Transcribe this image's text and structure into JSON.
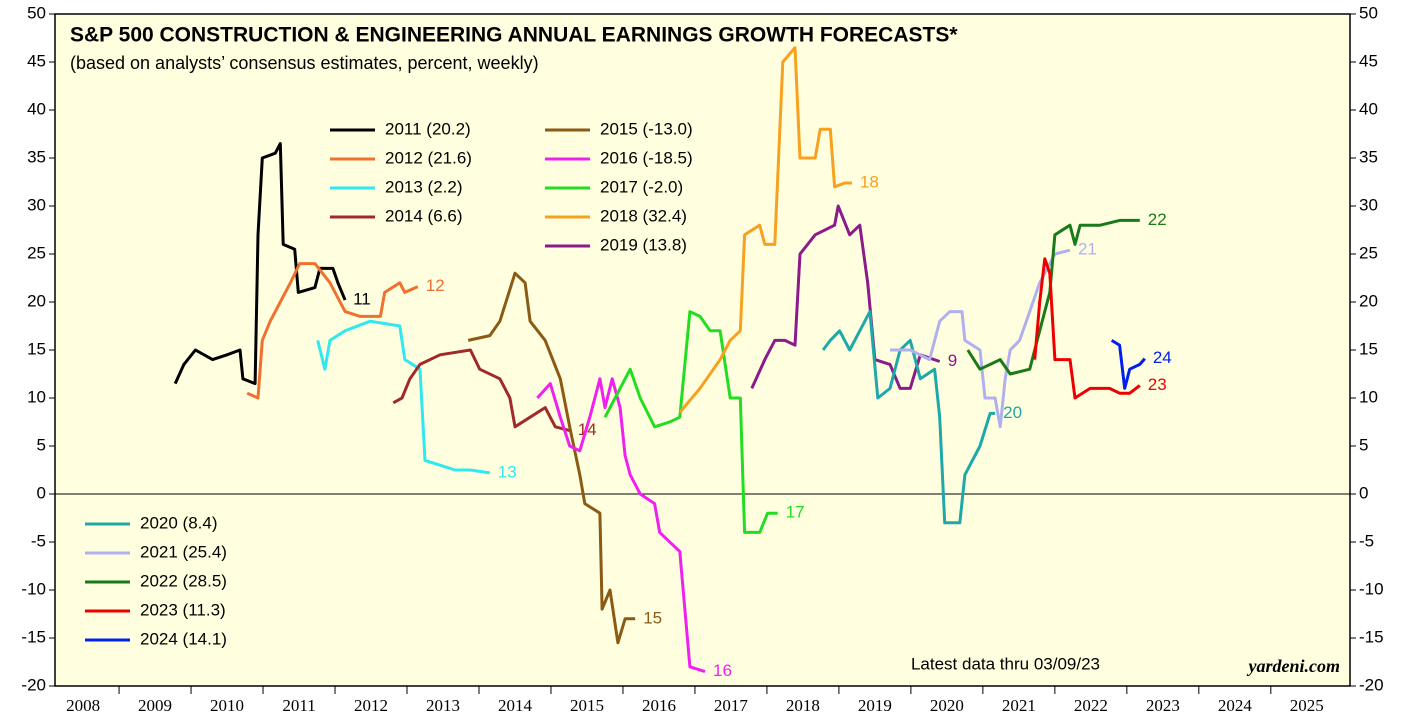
{
  "chart_data": {
    "type": "line",
    "title": "S&P 500 CONSTRUCTION & ENGINEERING ANNUAL EARNINGS GROWTH FORECASTS*",
    "subtitle": "(based on analysts’ consensus estimates, percent, weekly)",
    "annotations": [
      "Latest data thru 03/09/23",
      "yardeni.com"
    ],
    "xlim": [
      2008.11,
      2026.1
    ],
    "xticks": [
      2008,
      2009,
      2010,
      2011,
      2012,
      2013,
      2014,
      2015,
      2016,
      2017,
      2018,
      2019,
      2020,
      2021,
      2022,
      2023,
      2024,
      2025
    ],
    "ylim": [
      -20,
      50
    ],
    "yticks": [
      -20,
      -15,
      -10,
      -5,
      0,
      5,
      10,
      15,
      20,
      25,
      30,
      35,
      40,
      45,
      50
    ],
    "series": [
      {
        "name": "2011 (20.2)",
        "end_label": "11",
        "color": "#000000",
        "x": [
          2009.78,
          2009.9,
          2010.06,
          2010.3,
          2010.5,
          2010.68,
          2010.72,
          2010.89,
          2010.93,
          2010.99,
          2011.17,
          2011.24,
          2011.28,
          2011.44,
          2011.49,
          2011.72,
          2011.79,
          2011.97,
          2012.04,
          2012.14
        ],
        "values": [
          11.5,
          13.5,
          15,
          14,
          14.5,
          15,
          12,
          11.5,
          27,
          35,
          35.5,
          36.5,
          26,
          25.5,
          21,
          21.5,
          23.5,
          23.5,
          22,
          20.2
        ]
      },
      {
        "name": "2012 (21.6)",
        "end_label": "12",
        "color": "#f07030",
        "x": [
          2010.78,
          2010.93,
          2010.99,
          2011.1,
          2011.24,
          2011.38,
          2011.51,
          2011.72,
          2011.93,
          2012.14,
          2012.35,
          2012.63,
          2012.69,
          2012.9,
          2012.97,
          2013.15
        ],
        "values": [
          10.5,
          10,
          16,
          18,
          20,
          22,
          24,
          24,
          22,
          19,
          18.5,
          18.5,
          21,
          22,
          21,
          21.6
        ]
      },
      {
        "name": "2013 (2.2)",
        "end_label": "13",
        "color": "#30e8f0",
        "x": [
          2011.76,
          2011.86,
          2011.93,
          2012.14,
          2012.49,
          2012.9,
          2012.97,
          2013.18,
          2013.25,
          2013.46,
          2013.67,
          2013.88,
          2014.15
        ],
        "values": [
          16,
          13,
          16,
          17,
          18,
          17.5,
          14,
          13,
          3.5,
          3,
          2.5,
          2.5,
          2.2
        ]
      },
      {
        "name": "2014 (6.6)",
        "end_label": "14",
        "color": "#a02a2a",
        "x": [
          2012.81,
          2012.93,
          2013.04,
          2013.18,
          2013.46,
          2013.88,
          2014.01,
          2014.29,
          2014.43,
          2014.5,
          2014.71,
          2014.92,
          2015.06,
          2015.26
        ],
        "values": [
          9.5,
          10,
          12,
          13.5,
          14.5,
          15,
          13,
          12,
          10,
          7,
          8,
          9,
          7,
          6.6
        ]
      },
      {
        "name": "2015 (-13.0)",
        "end_label": "15",
        "color": "#8b5a14",
        "x": [
          2013.85,
          2014.15,
          2014.29,
          2014.5,
          2014.64,
          2014.71,
          2014.92,
          2015.13,
          2015.26,
          2015.4,
          2015.47,
          2015.68,
          2015.71,
          2015.82,
          2015.93,
          2016.03,
          2016.17
        ],
        "values": [
          16,
          16.5,
          18,
          23,
          22,
          18,
          16,
          12,
          7,
          2,
          -1,
          -2,
          -12,
          -10,
          -15.5,
          -13,
          -13
        ]
      },
      {
        "name": "2016 (-18.5)",
        "end_label": "16",
        "color": "#f020f0",
        "x": [
          2014.81,
          2014.99,
          2015.13,
          2015.26,
          2015.4,
          2015.54,
          2015.68,
          2015.75,
          2015.85,
          2015.96,
          2016.03,
          2016.1,
          2016.24,
          2016.44,
          2016.51,
          2016.79,
          2016.93,
          2017.14
        ],
        "values": [
          10,
          11.5,
          8,
          5,
          4.5,
          8,
          12,
          9,
          12,
          9,
          4,
          2,
          0,
          -1,
          -4,
          -6,
          -18,
          -18.5
        ]
      },
      {
        "name": "2017 (-2.0)",
        "end_label": "17",
        "color": "#22dd22",
        "x": [
          2015.75,
          2015.96,
          2016.1,
          2016.24,
          2016.44,
          2016.65,
          2016.79,
          2016.93,
          2017.07,
          2017.21,
          2017.35,
          2017.49,
          2017.63,
          2017.69,
          2017.9,
          2018.01,
          2018.15
        ],
        "values": [
          8,
          11,
          13,
          10,
          7,
          7.5,
          8,
          19,
          18.5,
          17,
          17,
          10,
          10,
          -4,
          -4,
          -2,
          -2
        ]
      },
      {
        "name": "2018 (32.4)",
        "end_label": "18",
        "color": "#f8a020",
        "x": [
          2016.79,
          2017.07,
          2017.35,
          2017.49,
          2017.63,
          2017.69,
          2017.9,
          2017.97,
          2018.11,
          2018.22,
          2018.39,
          2018.46,
          2018.67,
          2018.74,
          2018.88,
          2018.94,
          2019.08,
          2019.18
        ],
        "values": [
          8.5,
          11,
          14,
          16,
          17,
          27,
          28,
          26,
          26,
          45,
          46.5,
          35,
          35,
          38,
          38,
          32,
          32.4,
          32.4
        ]
      },
      {
        "name": "2019 (13.8)",
        "end_label": "9",
        "color": "#8b1a8b",
        "x": [
          2017.79,
          2017.97,
          2018.11,
          2018.25,
          2018.39,
          2018.46,
          2018.67,
          2018.94,
          2018.99,
          2019.15,
          2019.29,
          2019.4,
          2019.5,
          2019.71,
          2019.85,
          2019.99,
          2020.13,
          2020.4
        ],
        "values": [
          11,
          14,
          16,
          16,
          15.5,
          25,
          27,
          28,
          30,
          27,
          28,
          22,
          14,
          13.5,
          11,
          11,
          14.5,
          13.8
        ]
      },
      {
        "name": "2020 (8.4)",
        "end_label": "20",
        "color": "#20a8a8",
        "x": [
          2018.78,
          2018.88,
          2019.01,
          2019.15,
          2019.29,
          2019.43,
          2019.54,
          2019.71,
          2019.85,
          2019.99,
          2020.13,
          2020.33,
          2020.4,
          2020.47,
          2020.68,
          2020.75,
          2020.96,
          2021.1,
          2021.17
        ],
        "values": [
          15,
          16,
          17,
          15,
          17,
          19,
          10,
          11,
          15,
          16,
          12,
          13,
          8,
          -3,
          -3,
          2,
          5,
          8.4,
          8.4
        ]
      },
      {
        "name": "2021 (25.4)",
        "end_label": "21",
        "color": "#b0b0f0",
        "x": [
          2019.71,
          2019.99,
          2020.26,
          2020.4,
          2020.54,
          2020.71,
          2020.75,
          2020.96,
          2021.03,
          2021.17,
          2021.24,
          2021.31,
          2021.38,
          2021.51,
          2021.65,
          2021.79,
          2022.0,
          2022.21
        ],
        "values": [
          15,
          15,
          14,
          18,
          19,
          19,
          16,
          15,
          10,
          10,
          7,
          12,
          15,
          16,
          19,
          22,
          25,
          25.4
        ]
      },
      {
        "name": "2022 (28.5)",
        "end_label": "22",
        "color": "#1a7a1a",
        "x": [
          2020.79,
          2020.96,
          2021.24,
          2021.38,
          2021.65,
          2021.79,
          2021.93,
          2022.0,
          2022.21,
          2022.28,
          2022.35,
          2022.63,
          2022.9,
          2023.18
        ],
        "values": [
          15,
          13,
          14,
          12.5,
          13,
          17,
          21,
          27,
          28,
          26,
          28,
          28,
          28.5,
          28.5
        ]
      },
      {
        "name": "2023 (11.3)",
        "end_label": "23",
        "color": "#ee0000",
        "x": [
          2021.72,
          2021.79,
          2021.86,
          2021.93,
          2022.0,
          2022.21,
          2022.28,
          2022.49,
          2022.76,
          2022.9,
          2023.04,
          2023.18
        ],
        "values": [
          14,
          20,
          24.5,
          23,
          14,
          14,
          10,
          11,
          11,
          10.5,
          10.5,
          11.3
        ]
      },
      {
        "name": "2024 (14.1)",
        "end_label": "24",
        "color": "#0020ee",
        "x": [
          2022.79,
          2022.9,
          2022.97,
          2023.04,
          2023.18,
          2023.25
        ],
        "values": [
          16,
          15.5,
          11,
          13,
          13.5,
          14.1
        ]
      }
    ]
  }
}
